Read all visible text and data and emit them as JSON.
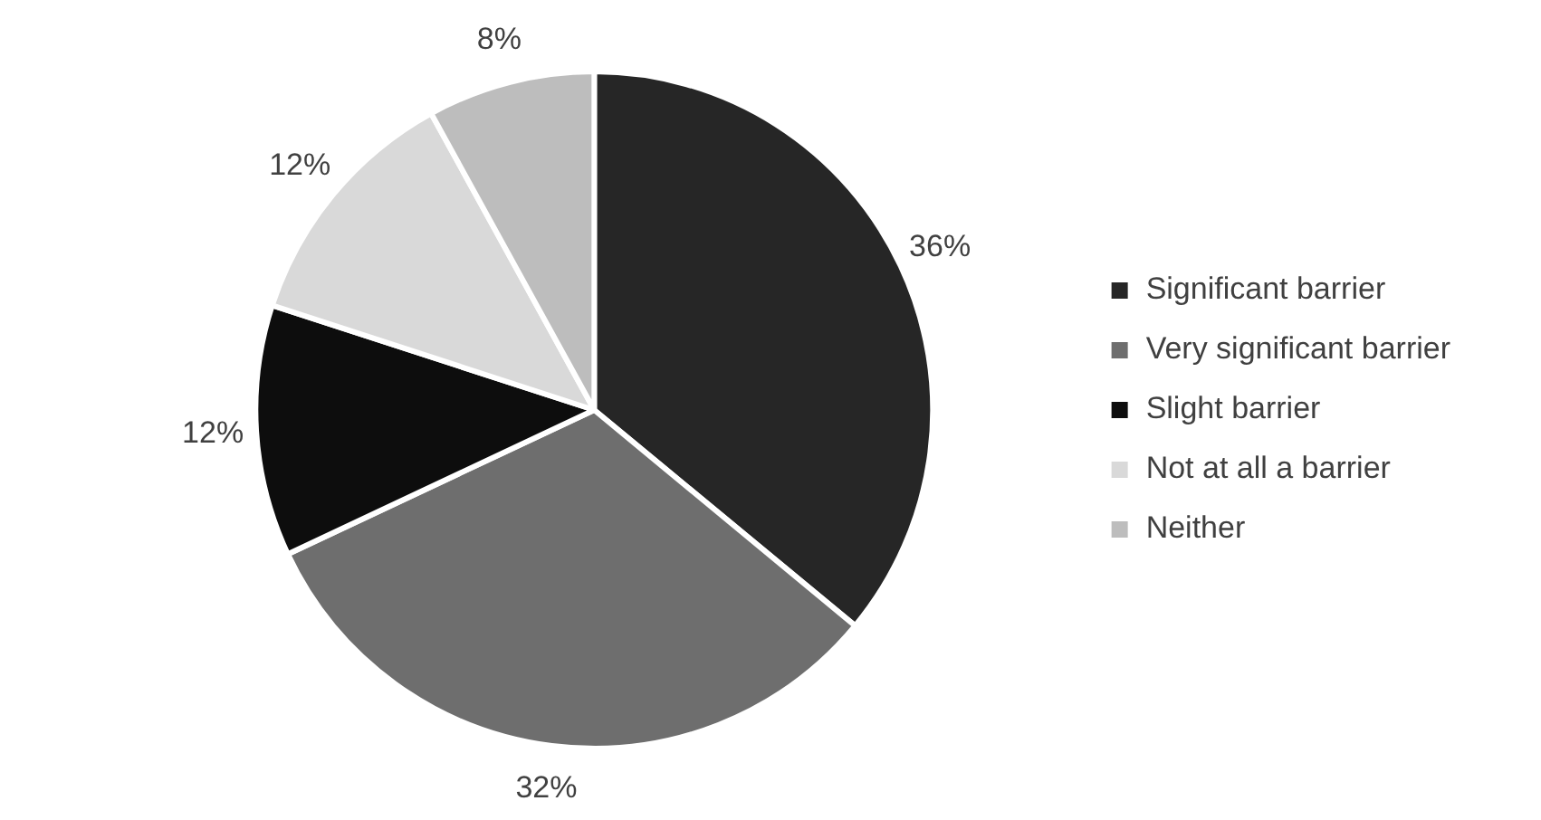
{
  "chart_data": {
    "type": "pie",
    "categories": [
      "Significant barrier",
      "Very significant barrier",
      "Slight barrier",
      "Not at all a barrier",
      "Neither"
    ],
    "values": [
      36,
      32,
      12,
      12,
      8
    ],
    "colors": [
      "#262626",
      "#6e6e6e",
      "#0d0d0d",
      "#d9d9d9",
      "#bdbdbd"
    ],
    "value_labels": [
      "36%",
      "32%",
      "12%",
      "12%",
      "8%"
    ],
    "legend": "right"
  }
}
